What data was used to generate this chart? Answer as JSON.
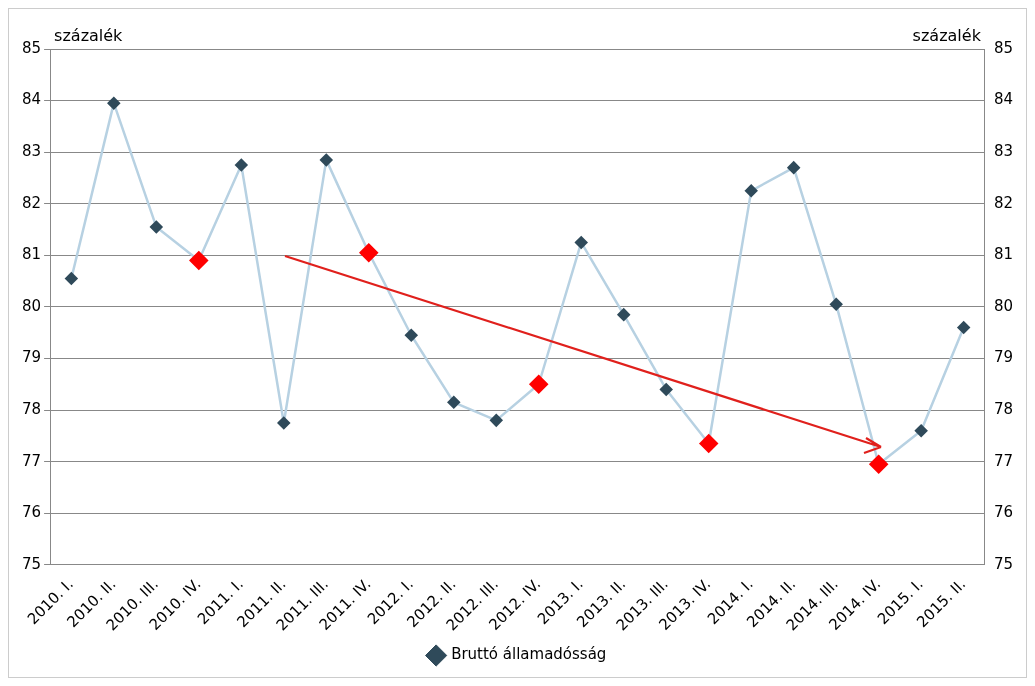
{
  "chart_data": {
    "type": "line",
    "ylabel": "százalék",
    "y2label": "százalék",
    "categories": [
      "2010. I.",
      "2010. II.",
      "2010. III.",
      "2010. IV.",
      "2011. I.",
      "2011. II.",
      "2011. III.",
      "2011. IV.",
      "2012. I.",
      "2012. II.",
      "2012. III.",
      "2012. IV.",
      "2013. I.",
      "2013. II.",
      "2013. III.",
      "2013. IV.",
      "2014. I.",
      "2014. II.",
      "2014. III.",
      "2014. IV.",
      "2015. I.",
      "2015. II."
    ],
    "series": [
      {
        "name": "Bruttó államadósság",
        "color": "#b7d1e2",
        "values": [
          80.55,
          83.95,
          81.55,
          80.9,
          82.75,
          77.75,
          82.85,
          81.05,
          79.45,
          78.15,
          77.8,
          78.5,
          81.25,
          79.85,
          78.4,
          77.35,
          82.25,
          82.7,
          80.05,
          76.95,
          77.6,
          79.6
        ],
        "colors": [
          "#2f4a5a",
          "#2f4a5a",
          "#2f4a5a",
          "#ff0000",
          "#2f4a5a",
          "#2f4a5a",
          "#2f4a5a",
          "#ff0000",
          "#2f4a5a",
          "#2f4a5a",
          "#2f4a5a",
          "#ff0000",
          "#2f4a5a",
          "#2f4a5a",
          "#2f4a5a",
          "#ff0000",
          "#2f4a5a",
          "#2f4a5a",
          "#2f4a5a",
          "#ff0000",
          "#2f4a5a",
          "#2f4a5a"
        ]
      }
    ],
    "ylim": [
      75,
      85
    ],
    "yticks": [
      75,
      76,
      77,
      78,
      79,
      80,
      81,
      82,
      83,
      84,
      85
    ],
    "y2lim": [
      75,
      85
    ],
    "y2ticks": [
      75,
      76,
      77,
      78,
      79,
      80,
      81,
      82,
      83,
      84,
      85
    ],
    "grid": "y",
    "legend": "bottom",
    "marker": "diamond",
    "line_style": "solid"
  }
}
